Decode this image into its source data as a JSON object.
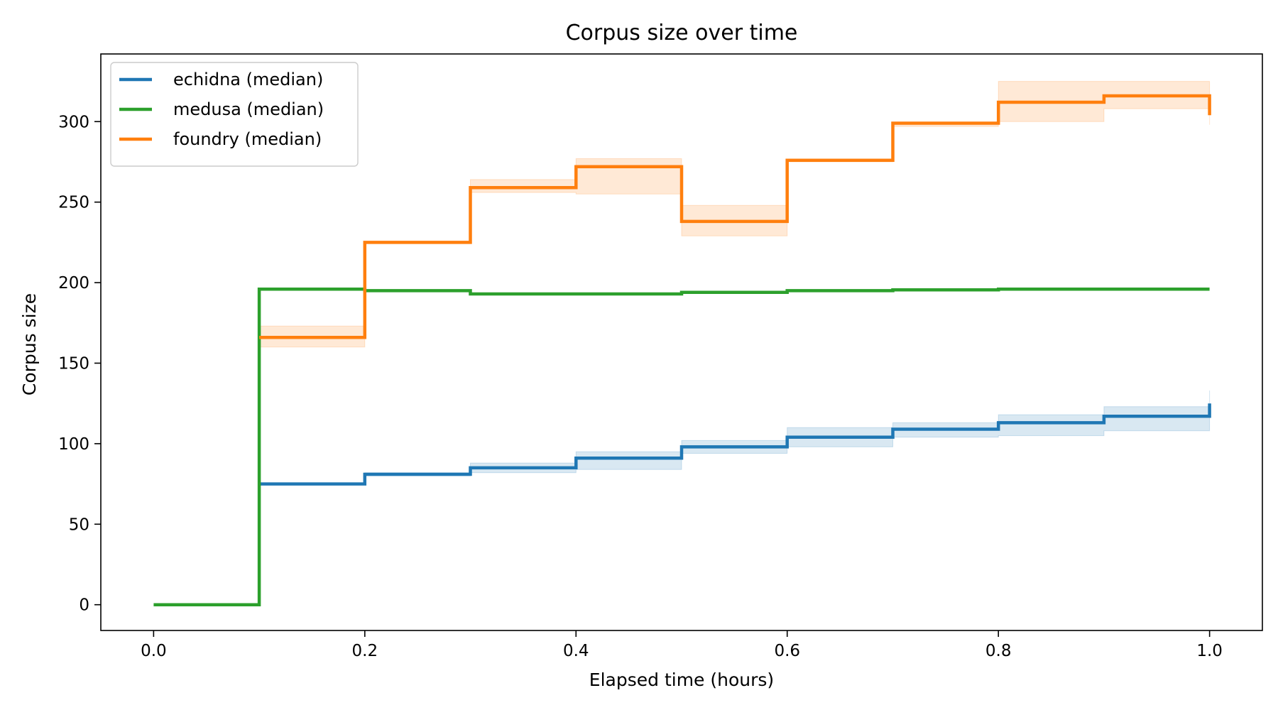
{
  "chart_data": {
    "type": "line",
    "title": "Corpus size over time",
    "xlabel": "Elapsed time (hours)",
    "ylabel": "Corpus size",
    "xlim": [
      -0.05,
      1.05
    ],
    "ylim": [
      -16,
      342
    ],
    "xticks": [
      0.0,
      0.2,
      0.4,
      0.6,
      0.8,
      1.0
    ],
    "xtick_labels": [
      "0.0",
      "0.2",
      "0.4",
      "0.6",
      "0.8",
      "1.0"
    ],
    "yticks": [
      0,
      50,
      100,
      150,
      200,
      250,
      300
    ],
    "ytick_labels": [
      "0",
      "50",
      "100",
      "150",
      "200",
      "250",
      "300"
    ],
    "grid": false,
    "legend_position": "top-left",
    "step": "post",
    "series": [
      {
        "name": "echidna (median)",
        "color": "#1f77b4",
        "x": [
          0.1,
          0.2,
          0.3,
          0.4,
          0.5,
          0.6,
          0.7,
          0.8,
          0.9,
          1.0
        ],
        "y": [
          75,
          81,
          85,
          91,
          98,
          104,
          109,
          113,
          117,
          125
        ],
        "band_low": [
          75,
          80,
          82,
          84,
          94,
          98,
          104,
          105,
          108,
          112
        ],
        "band_high": [
          75,
          82,
          88,
          95,
          102,
          110,
          113,
          118,
          123,
          133
        ]
      },
      {
        "name": "medusa (median)",
        "color": "#2ca02c",
        "x": [
          0.0,
          0.1,
          0.2,
          0.3,
          0.4,
          0.5,
          0.6,
          0.7,
          0.8,
          0.9,
          1.0
        ],
        "y": [
          0,
          196,
          195,
          193,
          193,
          194,
          195,
          195.5,
          196,
          196,
          196
        ]
      },
      {
        "name": "foundry (median)",
        "color": "#ff7f0e",
        "x": [
          0.1,
          0.2,
          0.3,
          0.4,
          0.5,
          0.6,
          0.7,
          0.8,
          0.9,
          1.0
        ],
        "y": [
          166,
          225,
          259,
          272,
          238,
          276,
          299,
          312,
          316,
          304
        ],
        "band_low": [
          160,
          225,
          256,
          255,
          229,
          275,
          297,
          300,
          308,
          298
        ],
        "band_high": [
          173,
          225,
          264,
          277,
          248,
          276,
          299,
          325,
          325,
          325
        ]
      }
    ]
  }
}
